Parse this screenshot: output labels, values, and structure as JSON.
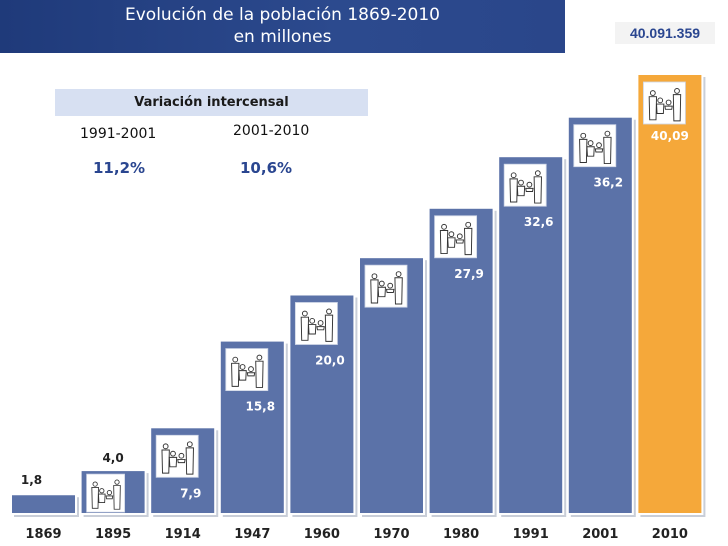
{
  "title_line1": "Evolución de la población 1869-2010",
  "title_line2": "en millones",
  "total_label": "40.091.359",
  "variation": {
    "title": "Variación intercensal",
    "periods": [
      {
        "label": "1991-2001",
        "value": "11,2%"
      },
      {
        "label": "2001-2010",
        "value": "10,6%"
      }
    ]
  },
  "colors": {
    "bar": "#5b72a8",
    "highlight": "#f5a83a",
    "title_bg": "#2c4a8e"
  },
  "icons": {
    "family": "family-icon"
  },
  "chart_data": {
    "type": "bar",
    "title": "Evolución de la población 1869-2010",
    "subtitle": "en millones",
    "categories": [
      "1869",
      "1895",
      "1914",
      "1947",
      "1960",
      "1970",
      "1980",
      "1991",
      "2001",
      "2010"
    ],
    "values": [
      1.8,
      4.0,
      7.9,
      15.8,
      20.0,
      23.4,
      27.9,
      32.6,
      36.2,
      40.09
    ],
    "labels": [
      "1,8",
      "4,0",
      "7,9",
      "15,8",
      "20,0",
      "",
      "27,9",
      "32,6",
      "36,2",
      "40,09"
    ],
    "ylim": [
      0,
      42
    ],
    "grid": false,
    "legend": "none"
  }
}
